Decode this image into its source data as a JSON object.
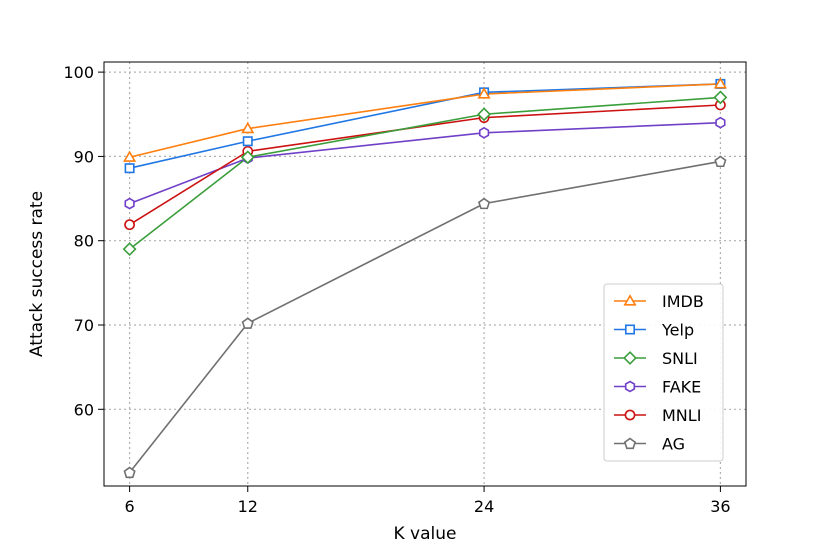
{
  "chart_data": {
    "type": "line",
    "title": "",
    "xlabel": "K value",
    "ylabel": "Attack success rate",
    "x": [
      6,
      12,
      24,
      36
    ],
    "x_ticks": [
      "6",
      "12",
      "24",
      "36"
    ],
    "y_ticks": [
      "60",
      "70",
      "80",
      "90",
      "100"
    ],
    "xlim": [
      4.7,
      37.3
    ],
    "ylim": [
      50.9,
      101.2
    ],
    "grid": true,
    "legend_position": "lower-right",
    "series": [
      {
        "name": "IMDB",
        "values": [
          89.9,
          93.3,
          97.4,
          98.6
        ],
        "color": "#ff7f0e",
        "marker": "triangle"
      },
      {
        "name": "Yelp",
        "values": [
          88.6,
          91.8,
          97.6,
          98.6
        ],
        "color": "#1f77e4",
        "marker": "square"
      },
      {
        "name": "SNLI",
        "values": [
          79.0,
          89.9,
          95.0,
          97.0
        ],
        "color": "#3a9e3a",
        "marker": "diamond"
      },
      {
        "name": "FAKE",
        "values": [
          84.4,
          89.8,
          92.8,
          94.0
        ],
        "color": "#7040c8",
        "marker": "hexagon"
      },
      {
        "name": "MNLI",
        "values": [
          81.9,
          90.6,
          94.6,
          96.1
        ],
        "color": "#cc1111",
        "marker": "circle"
      },
      {
        "name": "AG",
        "values": [
          52.5,
          70.2,
          84.4,
          89.4
        ],
        "color": "#707070",
        "marker": "pentagon"
      }
    ]
  }
}
